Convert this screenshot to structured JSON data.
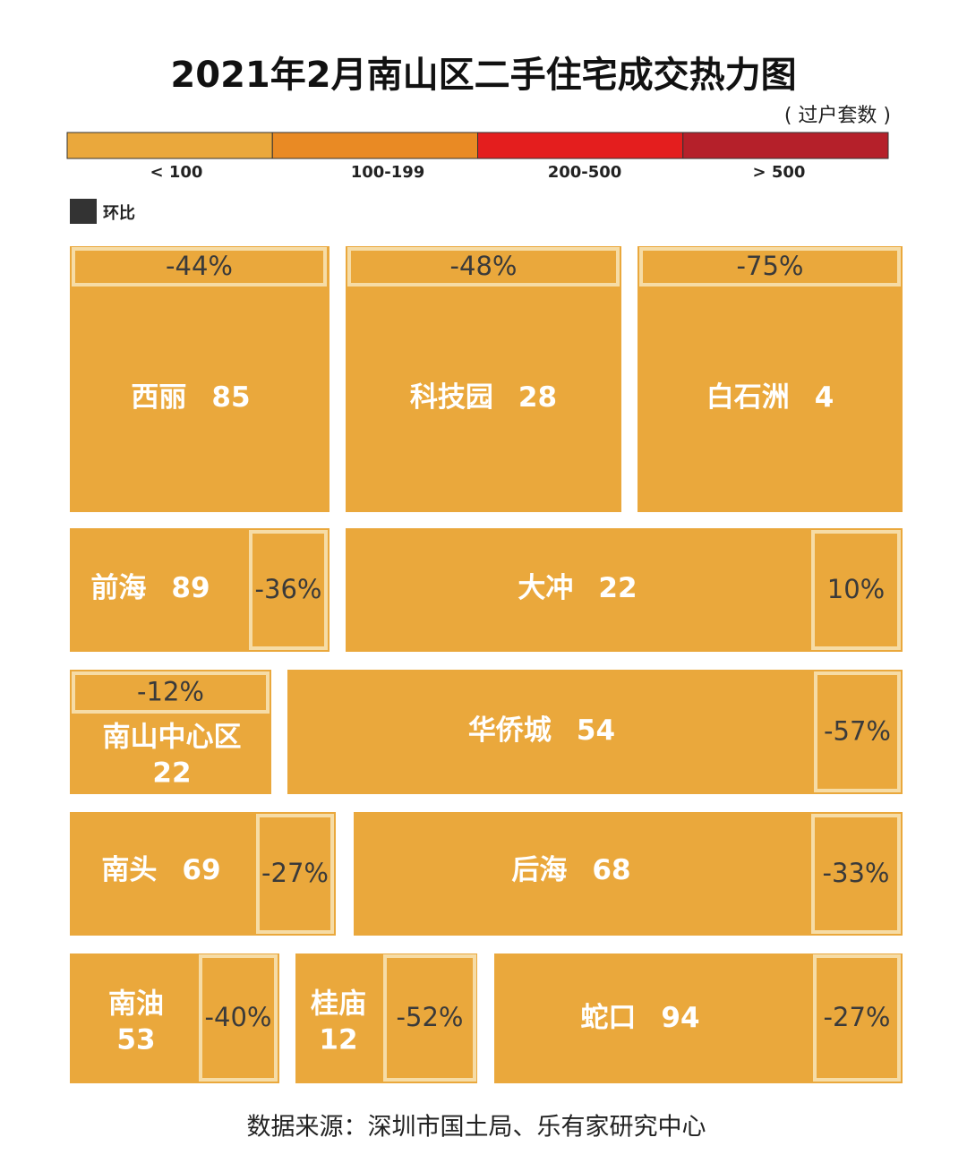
{
  "chart_data": {
    "type": "tile-heatmap",
    "title": "2021年2月南山区二手住宅成交热力图",
    "subtitle": "( 过户套数 )",
    "legend": [
      {
        "label": "< 100",
        "color": "#eaa83c"
      },
      {
        "label": "100-199",
        "color": "#e98a24"
      },
      {
        "label": "200-500",
        "color": "#e41e1e"
      },
      {
        "label": "> 500",
        "color": "#b5202a"
      }
    ],
    "change_legend": "环比",
    "change_color": "#333333",
    "categories": [
      "西丽",
      "科技园",
      "白石洲",
      "前海",
      "大冲",
      "南山中心区",
      "华侨城",
      "南头",
      "后海",
      "南油",
      "桂庙",
      "蛇口"
    ],
    "values": [
      85,
      28,
      4,
      89,
      22,
      22,
      54,
      69,
      68,
      53,
      12,
      94
    ],
    "changes": [
      -44,
      -48,
      -75,
      -36,
      10,
      -12,
      -57,
      -27,
      -33,
      -40,
      -52,
      -27
    ],
    "change_labels": [
      "-44%",
      "-48%",
      "-75%",
      "-36%",
      "10%",
      "-12%",
      "-57%",
      "-27%",
      "-33%",
      "-40%",
      "-52%",
      "-27%"
    ],
    "color": "#eaa83c",
    "source": "数据来源：深圳市国土局、乐有家研究中心"
  }
}
